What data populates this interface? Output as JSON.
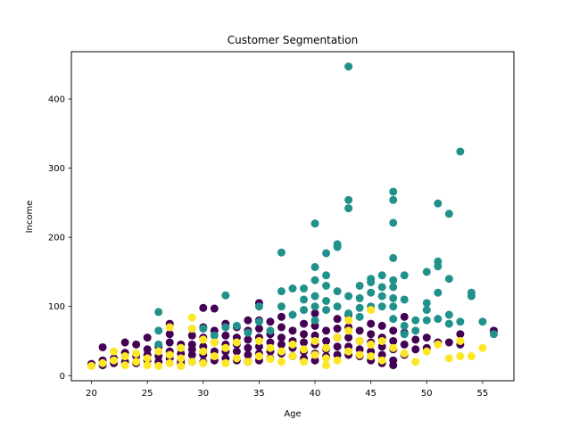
{
  "chart_data": {
    "type": "scatter",
    "title": "Customer Segmentation",
    "xlabel": "Age",
    "ylabel": "Income",
    "xlim": [
      18.2,
      57.8
    ],
    "ylim": [
      -7.4,
      468.4
    ],
    "xticks": [
      20,
      25,
      30,
      35,
      40,
      45,
      50,
      55
    ],
    "yticks": [
      0,
      100,
      200,
      300,
      400
    ],
    "grid": false,
    "legend": "none",
    "series": [
      {
        "color": "#440154",
        "points": [
          [
            20,
            17
          ],
          [
            21,
            41
          ],
          [
            21,
            22
          ],
          [
            21,
            15
          ],
          [
            22,
            18
          ],
          [
            22,
            25
          ],
          [
            23,
            48
          ],
          [
            23,
            33
          ],
          [
            23,
            20
          ],
          [
            24,
            45
          ],
          [
            24,
            28
          ],
          [
            24,
            18
          ],
          [
            25,
            55
          ],
          [
            25,
            38
          ],
          [
            25,
            30
          ],
          [
            25,
            22
          ],
          [
            26,
            42
          ],
          [
            26,
            28
          ],
          [
            26,
            20
          ],
          [
            27,
            75
          ],
          [
            27,
            60
          ],
          [
            27,
            48
          ],
          [
            27,
            35
          ],
          [
            27,
            25
          ],
          [
            28,
            45
          ],
          [
            28,
            32
          ],
          [
            28,
            22
          ],
          [
            28,
            18
          ],
          [
            29,
            58
          ],
          [
            29,
            45
          ],
          [
            29,
            38
          ],
          [
            29,
            30
          ],
          [
            29,
            20
          ],
          [
            30,
            98
          ],
          [
            30,
            70
          ],
          [
            30,
            55
          ],
          [
            30,
            42
          ],
          [
            30,
            30
          ],
          [
            30,
            20
          ],
          [
            31,
            97
          ],
          [
            31,
            65
          ],
          [
            31,
            48
          ],
          [
            31,
            35
          ],
          [
            31,
            22
          ],
          [
            32,
            75
          ],
          [
            32,
            58
          ],
          [
            32,
            45
          ],
          [
            32,
            35
          ],
          [
            32,
            25
          ],
          [
            33,
            70
          ],
          [
            33,
            55
          ],
          [
            33,
            45
          ],
          [
            33,
            35
          ],
          [
            33,
            22
          ],
          [
            34,
            80
          ],
          [
            34,
            65
          ],
          [
            34,
            52
          ],
          [
            34,
            40
          ],
          [
            34,
            30
          ],
          [
            34,
            20
          ],
          [
            35,
            105
          ],
          [
            35,
            80
          ],
          [
            35,
            68
          ],
          [
            35,
            55
          ],
          [
            35,
            42
          ],
          [
            35,
            32
          ],
          [
            35,
            22
          ],
          [
            36,
            78
          ],
          [
            36,
            60
          ],
          [
            36,
            48
          ],
          [
            36,
            35
          ],
          [
            36,
            25
          ],
          [
            37,
            85
          ],
          [
            37,
            70
          ],
          [
            37,
            55
          ],
          [
            37,
            45
          ],
          [
            37,
            32
          ],
          [
            38,
            65
          ],
          [
            38,
            50
          ],
          [
            38,
            40
          ],
          [
            38,
            28
          ],
          [
            39,
            75
          ],
          [
            39,
            60
          ],
          [
            39,
            48
          ],
          [
            39,
            35
          ],
          [
            39,
            25
          ],
          [
            40,
            90
          ],
          [
            40,
            72
          ],
          [
            40,
            58
          ],
          [
            40,
            45
          ],
          [
            40,
            32
          ],
          [
            40,
            22
          ],
          [
            41,
            65
          ],
          [
            41,
            50
          ],
          [
            41,
            38
          ],
          [
            41,
            28
          ],
          [
            42,
            82
          ],
          [
            42,
            68
          ],
          [
            42,
            55
          ],
          [
            42,
            42
          ],
          [
            42,
            30
          ],
          [
            43,
            88
          ],
          [
            43,
            70
          ],
          [
            43,
            55
          ],
          [
            43,
            42
          ],
          [
            43,
            30
          ],
          [
            44,
            65
          ],
          [
            44,
            50
          ],
          [
            44,
            38
          ],
          [
            44,
            28
          ],
          [
            45,
            75
          ],
          [
            45,
            60
          ],
          [
            45,
            48
          ],
          [
            45,
            35
          ],
          [
            45,
            22
          ],
          [
            46,
            72
          ],
          [
            46,
            55
          ],
          [
            46,
            42
          ],
          [
            46,
            30
          ],
          [
            46,
            18
          ],
          [
            47,
            65
          ],
          [
            47,
            50
          ],
          [
            47,
            38
          ],
          [
            47,
            22
          ],
          [
            47,
            15
          ],
          [
            48,
            85
          ],
          [
            48,
            62
          ],
          [
            48,
            45
          ],
          [
            48,
            30
          ],
          [
            49,
            52
          ],
          [
            49,
            38
          ],
          [
            50,
            55
          ],
          [
            50,
            40
          ],
          [
            51,
            48
          ],
          [
            52,
            48
          ],
          [
            53,
            60
          ],
          [
            53,
            45
          ],
          [
            56,
            65
          ]
        ]
      },
      {
        "color": "#21918c",
        "points": [
          [
            26,
            92
          ],
          [
            26,
            65
          ],
          [
            26,
            45
          ],
          [
            28,
            40
          ],
          [
            30,
            68
          ],
          [
            31,
            58
          ],
          [
            32,
            116
          ],
          [
            32,
            70
          ],
          [
            33,
            72
          ],
          [
            34,
            62
          ],
          [
            35,
            100
          ],
          [
            35,
            78
          ],
          [
            36,
            65
          ],
          [
            37,
            178
          ],
          [
            37,
            122
          ],
          [
            37,
            100
          ],
          [
            38,
            126
          ],
          [
            38,
            88
          ],
          [
            39,
            126
          ],
          [
            39,
            110
          ],
          [
            39,
            95
          ],
          [
            40,
            220
          ],
          [
            40,
            157
          ],
          [
            40,
            138
          ],
          [
            40,
            115
          ],
          [
            40,
            100
          ],
          [
            40,
            80
          ],
          [
            41,
            177
          ],
          [
            41,
            145
          ],
          [
            41,
            130
          ],
          [
            41,
            108
          ],
          [
            41,
            95
          ],
          [
            42,
            190
          ],
          [
            42,
            186
          ],
          [
            42,
            122
          ],
          [
            42,
            100
          ],
          [
            43,
            447
          ],
          [
            43,
            254
          ],
          [
            43,
            242
          ],
          [
            43,
            115
          ],
          [
            43,
            90
          ],
          [
            44,
            130
          ],
          [
            44,
            112
          ],
          [
            44,
            98
          ],
          [
            44,
            85
          ],
          [
            45,
            140
          ],
          [
            45,
            135
          ],
          [
            45,
            120
          ],
          [
            45,
            100
          ],
          [
            46,
            145
          ],
          [
            46,
            128
          ],
          [
            46,
            115
          ],
          [
            46,
            100
          ],
          [
            47,
            266
          ],
          [
            47,
            254
          ],
          [
            47,
            221
          ],
          [
            47,
            170
          ],
          [
            47,
            138
          ],
          [
            47,
            128
          ],
          [
            47,
            112
          ],
          [
            47,
            100
          ],
          [
            47,
            82
          ],
          [
            48,
            145
          ],
          [
            48,
            110
          ],
          [
            48,
            72
          ],
          [
            48,
            60
          ],
          [
            49,
            80
          ],
          [
            49,
            65
          ],
          [
            50,
            150
          ],
          [
            50,
            105
          ],
          [
            50,
            95
          ],
          [
            50,
            80
          ],
          [
            51,
            249
          ],
          [
            51,
            165
          ],
          [
            51,
            158
          ],
          [
            51,
            120
          ],
          [
            51,
            82
          ],
          [
            52,
            234
          ],
          [
            52,
            140
          ],
          [
            52,
            88
          ],
          [
            52,
            75
          ],
          [
            53,
            324
          ],
          [
            53,
            78
          ],
          [
            54,
            120
          ],
          [
            54,
            115
          ],
          [
            55,
            78
          ],
          [
            56,
            60
          ]
        ]
      },
      {
        "color": "#fde725",
        "points": [
          [
            20,
            14
          ],
          [
            21,
            18
          ],
          [
            22,
            22
          ],
          [
            22,
            35
          ],
          [
            23,
            15
          ],
          [
            23,
            28
          ],
          [
            24,
            20
          ],
          [
            24,
            32
          ],
          [
            25,
            15
          ],
          [
            25,
            25
          ],
          [
            26,
            14
          ],
          [
            26,
            35
          ],
          [
            27,
            70
          ],
          [
            27,
            18
          ],
          [
            27,
            30
          ],
          [
            28,
            14
          ],
          [
            28,
            25
          ],
          [
            28,
            40
          ],
          [
            29,
            84
          ],
          [
            29,
            68
          ],
          [
            29,
            20
          ],
          [
            30,
            52
          ],
          [
            30,
            18
          ],
          [
            30,
            35
          ],
          [
            31,
            48
          ],
          [
            31,
            28
          ],
          [
            32,
            18
          ],
          [
            32,
            40
          ],
          [
            33,
            25
          ],
          [
            33,
            48
          ],
          [
            34,
            20
          ],
          [
            35,
            28
          ],
          [
            35,
            50
          ],
          [
            36,
            24
          ],
          [
            36,
            40
          ],
          [
            37,
            20
          ],
          [
            37,
            35
          ],
          [
            38,
            28
          ],
          [
            38,
            45
          ],
          [
            39,
            20
          ],
          [
            39,
            38
          ],
          [
            40,
            50
          ],
          [
            40,
            30
          ],
          [
            41,
            15
          ],
          [
            41,
            25
          ],
          [
            41,
            40
          ],
          [
            42,
            55
          ],
          [
            42,
            22
          ],
          [
            43,
            80
          ],
          [
            43,
            35
          ],
          [
            43,
            65
          ],
          [
            44,
            30
          ],
          [
            44,
            50
          ],
          [
            45,
            95
          ],
          [
            45,
            28
          ],
          [
            45,
            45
          ],
          [
            46,
            50
          ],
          [
            46,
            22
          ],
          [
            47,
            40
          ],
          [
            48,
            32
          ],
          [
            49,
            20
          ],
          [
            50,
            35
          ],
          [
            51,
            45
          ],
          [
            52,
            25
          ],
          [
            53,
            28
          ],
          [
            53,
            50
          ],
          [
            54,
            28
          ],
          [
            55,
            40
          ]
        ]
      }
    ]
  }
}
